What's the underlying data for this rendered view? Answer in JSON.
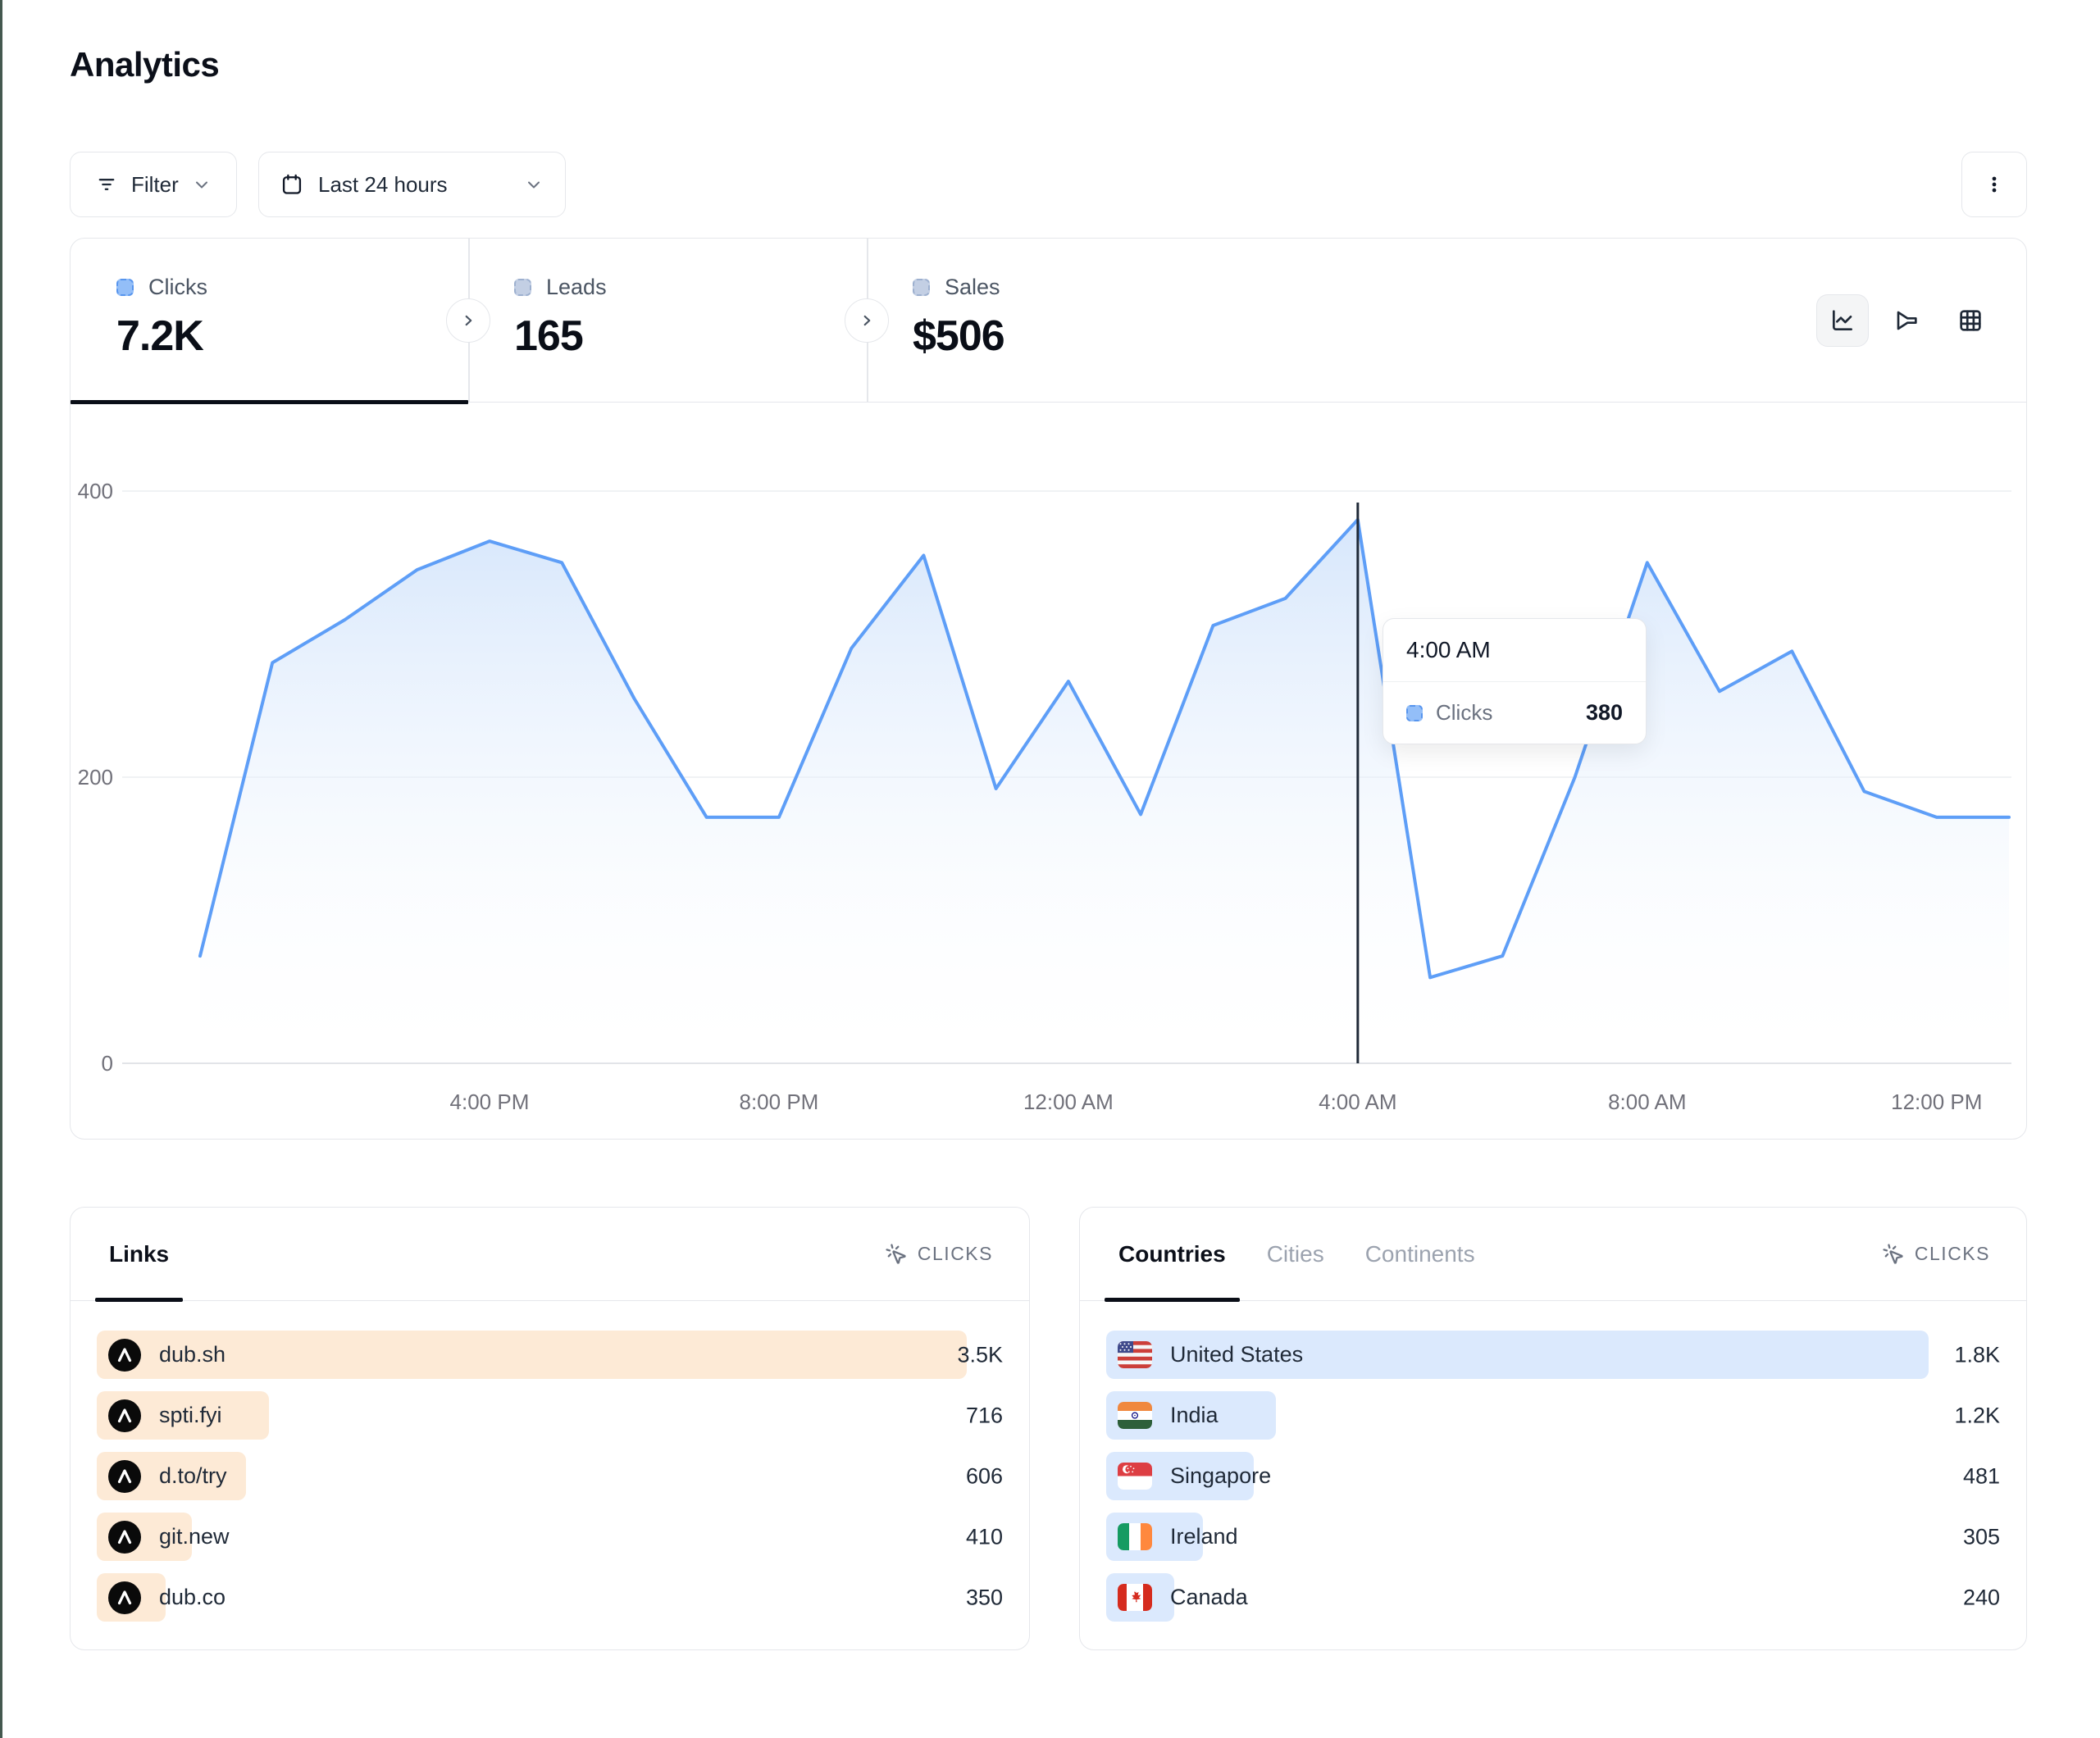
{
  "header": {
    "title": "Analytics"
  },
  "toolbar": {
    "filter_label": "Filter",
    "date_range_label": "Last 24 hours",
    "kebab_icon": "kebab-menu-icon",
    "filter_icon": "filter-bars-icon",
    "calendar_icon": "calendar-icon"
  },
  "stats": {
    "tabs": [
      {
        "label": "Clicks",
        "value": "7.2K",
        "active": true,
        "swatch_fill": "#93bef8",
        "swatch_border": "#5795ee"
      },
      {
        "label": "Leads",
        "value": "165",
        "active": false,
        "swatch_fill": "#c3cfe4",
        "swatch_border": "#9db0cf"
      },
      {
        "label": "Sales",
        "value": "$506",
        "active": false,
        "swatch_fill": "#c3cfe4",
        "swatch_border": "#9db0cf"
      }
    ],
    "view_switcher": [
      {
        "name": "line-chart-view",
        "icon": "chart-line-icon",
        "selected": true
      },
      {
        "name": "funnel-view",
        "icon": "funnel-icon",
        "selected": false
      },
      {
        "name": "table-view",
        "icon": "grid-icon",
        "selected": false
      }
    ]
  },
  "chart_data": {
    "type": "area",
    "title": "Clicks over time (last 24 hours)",
    "xlabel": "",
    "ylabel": "Clicks",
    "ylim": [
      0,
      400
    ],
    "yticks": [
      0,
      200,
      400
    ],
    "grid": "horizontal",
    "x_tick_labels": [
      "4:00 PM",
      "8:00 PM",
      "12:00 AM",
      "4:00 AM",
      "8:00 AM",
      "12:00 PM"
    ],
    "x_tick_indices": [
      4,
      8,
      12,
      16,
      20,
      24
    ],
    "series": [
      {
        "name": "Clicks",
        "color": "#5e9ef7",
        "area_top_color": "#cfe2fb",
        "values": [
          75,
          280,
          310,
          345,
          365,
          350,
          255,
          172,
          172,
          290,
          355,
          192,
          267,
          174,
          306,
          325,
          380,
          60,
          75,
          200,
          350,
          260,
          288,
          190,
          172,
          172
        ]
      }
    ],
    "highlight": {
      "index": 16,
      "label": "4:00 AM",
      "series": "Clicks",
      "value": "380"
    }
  },
  "tooltip": {
    "time": "4:00 AM",
    "series_label": "Clicks",
    "value": "380"
  },
  "links_panel": {
    "tabs": [
      {
        "label": "Links",
        "active": true
      }
    ],
    "metric_label": "CLICKS",
    "metric_icon": "cursor-click-icon",
    "bar_color": "#fdead6",
    "row_icon": "dub-logo-icon",
    "rows": [
      {
        "label": "dub.sh",
        "value": "3.5K",
        "bar_pct": 96
      },
      {
        "label": "spti.fyi",
        "value": "716",
        "bar_pct": 19
      },
      {
        "label": "d.to/try",
        "value": "606",
        "bar_pct": 16.5
      },
      {
        "label": "git.new",
        "value": "410",
        "bar_pct": 10.5
      },
      {
        "label": "dub.co",
        "value": "350",
        "bar_pct": 7.6
      }
    ]
  },
  "countries_panel": {
    "tabs": [
      {
        "label": "Countries",
        "active": true
      },
      {
        "label": "Cities",
        "active": false
      },
      {
        "label": "Continents",
        "active": false
      }
    ],
    "metric_label": "CLICKS",
    "metric_icon": "cursor-click-icon",
    "bar_color": "#dbe9fd",
    "rows": [
      {
        "label": "United States",
        "flag": "us",
        "value": "1.8K",
        "bar_pct": 92
      },
      {
        "label": "India",
        "flag": "in",
        "value": "1.2K",
        "bar_pct": 19
      },
      {
        "label": "Singapore",
        "flag": "sg",
        "value": "481",
        "bar_pct": 16.5
      },
      {
        "label": "Ireland",
        "flag": "ie",
        "value": "305",
        "bar_pct": 10.8
      },
      {
        "label": "Canada",
        "flag": "ca",
        "value": "240",
        "bar_pct": 7.6
      }
    ]
  },
  "colors": {
    "accent_blue": "#5e9ef7",
    "link_bar_orange": "#fdead6",
    "country_bar_blue": "#dbe9fd",
    "border_gray": "#e5e7eb",
    "text_dark": "#0b0f19",
    "text_gray": "#6b7280",
    "edge_strip": "#44584f",
    "highlight_rule": "#1f2937"
  }
}
